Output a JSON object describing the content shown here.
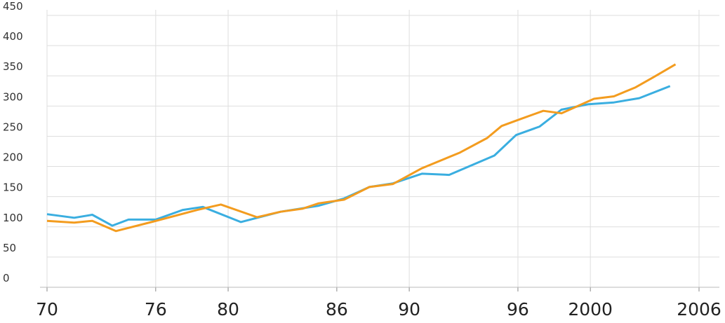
{
  "chart_data": {
    "type": "line",
    "xlim": [
      1970,
      2006
    ],
    "ylim": [
      0,
      450
    ],
    "xticks": [
      {
        "value": 1970,
        "label": "70"
      },
      {
        "value": 1976,
        "label": "76"
      },
      {
        "value": 1980,
        "label": "80"
      },
      {
        "value": 1986,
        "label": "86"
      },
      {
        "value": 1990,
        "label": "90"
      },
      {
        "value": 1996,
        "label": "96"
      },
      2000,
      2006
    ],
    "yticks": [
      0,
      50,
      100,
      150,
      200,
      250,
      300,
      350,
      400,
      450
    ],
    "grid": true,
    "series": [
      {
        "color": "#3aaee0",
        "x": [
          1970,
          1971.5,
          1972.5,
          1973.6,
          1974.5,
          1976,
          1977.5,
          1978.6,
          1980.7,
          1982.9,
          1985,
          1986.4,
          1987.8,
          1989.1,
          1990.7,
          1992.2,
          1994.7,
          1995.9,
          1997.2,
          1998.4,
          1999.9,
          2001.3,
          2002.7,
          2004.4
        ],
        "values": [
          121,
          115,
          120,
          102,
          112,
          112,
          128,
          133,
          108,
          125,
          135,
          147,
          166,
          172,
          188,
          186,
          218,
          252,
          266,
          294,
          303,
          306,
          313,
          333
        ]
      },
      {
        "color": "#f39c1f",
        "x": [
          1970,
          1971.5,
          1972.5,
          1973.8,
          1975.9,
          1978.3,
          1979.6,
          1981.6,
          1982.9,
          1984.1,
          1985,
          1986.4,
          1987.8,
          1989.1,
          1990.7,
          1992.8,
          1994.3,
          1995.1,
          1996.1,
          1997.4,
          1998.4,
          2000.2,
          2001.3,
          2002.5,
          2003.5,
          2004.7
        ],
        "values": [
          110,
          107,
          110,
          93,
          109,
          128,
          137,
          116,
          125,
          130,
          139,
          145,
          166,
          171,
          197,
          223,
          247,
          267,
          278,
          292,
          288,
          312,
          316,
          331,
          348,
          369
        ]
      }
    ]
  }
}
